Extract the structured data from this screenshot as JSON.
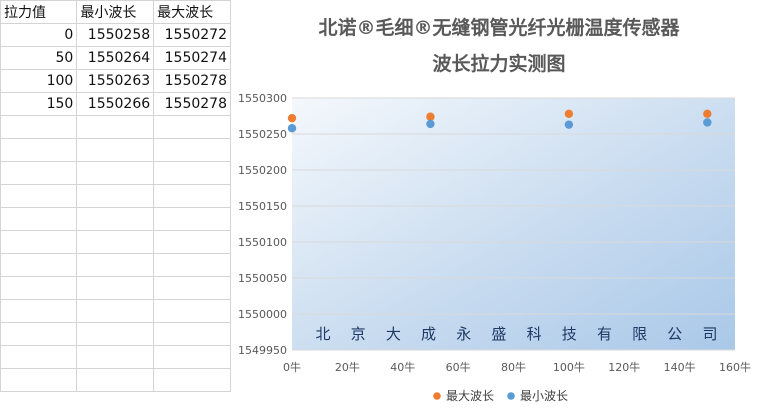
{
  "sheet": {
    "headers": [
      "拉力值",
      "最小波长",
      "最大波长"
    ],
    "rows": [
      [
        "0",
        "1550258",
        "1550272"
      ],
      [
        "50",
        "1550264",
        "1550274"
      ],
      [
        "100",
        "1550263",
        "1550278"
      ],
      [
        "150",
        "1550266",
        "1550278"
      ]
    ]
  },
  "chart_data": {
    "type": "scatter",
    "title": "北诺®毛细®无缝钢管光纤光栅温度传感器",
    "subtitle": "波长拉力实测图",
    "x": [
      0,
      50,
      100,
      150
    ],
    "series": [
      {
        "name": "最大波长",
        "color": "#ed7d31",
        "values": [
          1550272,
          1550274,
          1550278,
          1550278
        ]
      },
      {
        "name": "最小波长",
        "color": "#5b9bd5",
        "values": [
          1550258,
          1550264,
          1550263,
          1550266
        ]
      }
    ],
    "xlim": [
      0,
      160
    ],
    "ylim": [
      1549950,
      1550300
    ],
    "x_ticks": [
      "0牛",
      "20牛",
      "40牛",
      "60牛",
      "80牛",
      "100牛",
      "120牛",
      "140牛",
      "160牛"
    ],
    "y_ticks": [
      "1549950",
      "1550000",
      "1550050",
      "1550100",
      "1550150",
      "1550200",
      "1550250",
      "1550300"
    ],
    "annotation_chars": [
      "北",
      "京",
      "大",
      "成",
      "永",
      "盛",
      "科",
      "技",
      "有",
      "限",
      "公",
      "司"
    ],
    "legend_position": "bottom",
    "grid": true
  }
}
